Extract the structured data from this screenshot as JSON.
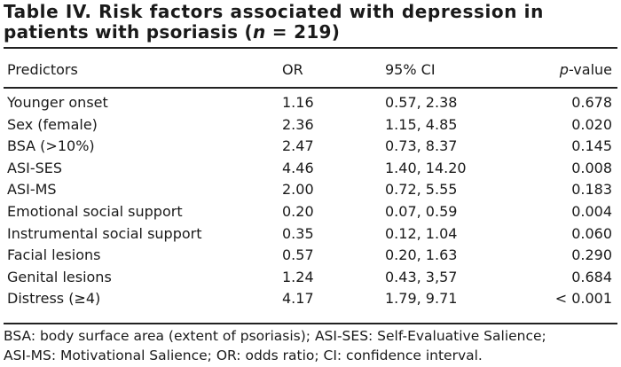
{
  "title": {
    "line1": "Table IV. Risk factors associated with depression in",
    "line2_prefix": "patients with psoriasis (",
    "line2_n": "n",
    "line2_suffix": " = 219)"
  },
  "headers": {
    "predictors": "Predictors",
    "or": "OR",
    "ci": "95% CI",
    "p_italic": "p",
    "p_rest": "-value"
  },
  "rows": [
    {
      "predictor": "Younger onset",
      "or": "1.16",
      "ci": "0.57, 2.38",
      "p": "0.678"
    },
    {
      "predictor": "Sex (female)",
      "or": "2.36",
      "ci": "1.15, 4.85",
      "p": "0.020"
    },
    {
      "predictor": "BSA (>10%)",
      "or": "2.47",
      "ci": "0.73, 8.37",
      "p": "0.145"
    },
    {
      "predictor": "ASI-SES",
      "or": "4.46",
      "ci": "1.40, 14.20",
      "p": "0.008"
    },
    {
      "predictor": "ASI-MS",
      "or": "2.00",
      "ci": "0.72, 5.55",
      "p": "0.183"
    },
    {
      "predictor": "Emotional social support",
      "or": "0.20",
      "ci": "0.07, 0.59",
      "p": "0.004"
    },
    {
      "predictor": "Instrumental social support",
      "or": "0.35",
      "ci": "0.12, 1.04",
      "p": "0.060"
    },
    {
      "predictor": "Facial lesions",
      "or": "0.57",
      "ci": "0.20, 1.63",
      "p": "0.290"
    },
    {
      "predictor": "Genital lesions",
      "or": "1.24",
      "ci": "0.43, 3,57",
      "p": "0.684"
    },
    {
      "predictor": "Distress (≥4)",
      "or": "4.17",
      "ci": "1.79, 9.71",
      "p": "< 0.001"
    }
  ],
  "footnote": {
    "line1": "BSA: body surface area (extent of psoriasis); ASI-SES: Self-Evaluative Salience;",
    "line2": "ASI-MS: Motivational Salience; OR: odds ratio; CI: confidence interval."
  }
}
